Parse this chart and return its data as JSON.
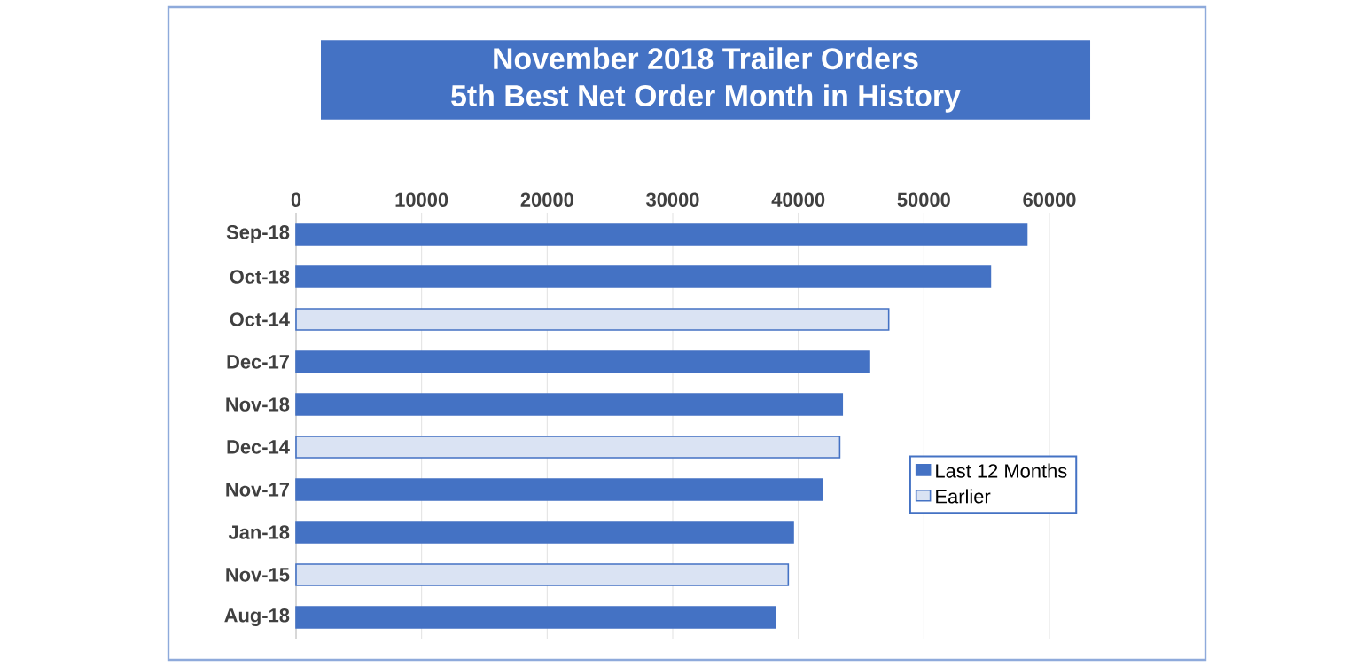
{
  "chart_data": {
    "type": "bar",
    "orientation": "horizontal",
    "stacked": true,
    "title": "November 2018 Trailer Orders",
    "subtitle": "5th Best Net Order Month in History",
    "categories": [
      "Sep-18",
      "Oct-18",
      "Oct-14",
      "Dec-17",
      "Nov-18",
      "Dec-14",
      "Nov-17",
      "Jan-18",
      "Nov-15",
      "Aug-18"
    ],
    "series": [
      {
        "name": "Last 12 Months",
        "color": "#4472c4",
        "values": [
          58200,
          55300,
          null,
          45600,
          43500,
          null,
          41900,
          39600,
          null,
          38200
        ]
      },
      {
        "name": "Earlier",
        "color": "#dae3f3",
        "values": [
          null,
          null,
          47200,
          null,
          null,
          43300,
          null,
          null,
          39200,
          null
        ]
      }
    ],
    "xlim": [
      0,
      60000
    ],
    "xticks": [
      0,
      10000,
      20000,
      30000,
      40000,
      50000,
      60000
    ],
    "grid": "x",
    "legend": "right"
  }
}
